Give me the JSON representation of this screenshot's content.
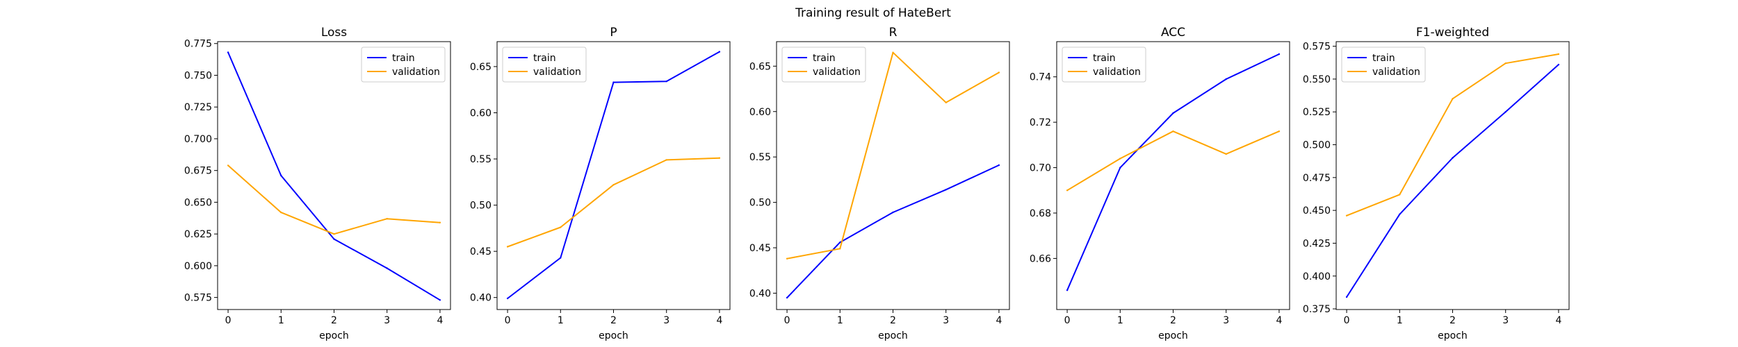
{
  "figure": {
    "suptitle": "Training result of HateBert"
  },
  "colors": {
    "train": "#0000ff",
    "validation": "#ffa500"
  },
  "chart_data": [
    {
      "type": "line",
      "title": "Loss",
      "xlabel": "epoch",
      "ylabel": "",
      "x": [
        0,
        1,
        2,
        3,
        4
      ],
      "xticks": [
        "0",
        "1",
        "2",
        "3",
        "4"
      ],
      "ylim": [
        0.5655,
        0.7765
      ],
      "yticks": [
        "0.575",
        "0.600",
        "0.625",
        "0.650",
        "0.675",
        "0.700",
        "0.725",
        "0.750",
        "0.775"
      ],
      "grid": false,
      "legend": "upper right",
      "series": [
        {
          "name": "train",
          "color": "#0000ff",
          "values": [
            0.768,
            0.671,
            0.621,
            0.598,
            0.573
          ]
        },
        {
          "name": "validation",
          "color": "#ffa500",
          "values": [
            0.679,
            0.642,
            0.625,
            0.637,
            0.634
          ]
        }
      ]
    },
    {
      "type": "line",
      "title": "P",
      "xlabel": "epoch",
      "ylabel": "",
      "x": [
        0,
        1,
        2,
        3,
        4
      ],
      "xticks": [
        "0",
        "1",
        "2",
        "3",
        "4"
      ],
      "ylim": [
        0.387,
        0.677
      ],
      "yticks": [
        "0.40",
        "0.45",
        "0.50",
        "0.55",
        "0.60",
        "0.65"
      ],
      "grid": false,
      "legend": "upper left",
      "series": [
        {
          "name": "train",
          "color": "#0000ff",
          "values": [
            0.399,
            0.443,
            0.633,
            0.634,
            0.666
          ]
        },
        {
          "name": "validation",
          "color": "#ffa500",
          "values": [
            0.455,
            0.476,
            0.522,
            0.549,
            0.551
          ]
        }
      ]
    },
    {
      "type": "line",
      "title": "R",
      "xlabel": "epoch",
      "ylabel": "",
      "x": [
        0,
        1,
        2,
        3,
        4
      ],
      "xticks": [
        "0",
        "1",
        "2",
        "3",
        "4"
      ],
      "ylim": [
        0.382,
        0.677
      ],
      "yticks": [
        "0.40",
        "0.45",
        "0.50",
        "0.55",
        "0.60",
        "0.65"
      ],
      "grid": false,
      "legend": "upper left",
      "series": [
        {
          "name": "train",
          "color": "#0000ff",
          "values": [
            0.395,
            0.456,
            0.489,
            0.514,
            0.541
          ]
        },
        {
          "name": "validation",
          "color": "#ffa500",
          "values": [
            0.438,
            0.449,
            0.665,
            0.61,
            0.643
          ]
        }
      ]
    },
    {
      "type": "line",
      "title": "ACC",
      "xlabel": "epoch",
      "ylabel": "",
      "x": [
        0,
        1,
        2,
        3,
        4
      ],
      "xticks": [
        "0",
        "1",
        "2",
        "3",
        "4"
      ],
      "ylim": [
        0.6375,
        0.7555
      ],
      "yticks": [
        "0.66",
        "0.68",
        "0.70",
        "0.72",
        "0.74"
      ],
      "grid": false,
      "legend": "upper left",
      "series": [
        {
          "name": "train",
          "color": "#0000ff",
          "values": [
            0.646,
            0.7,
            0.724,
            0.739,
            0.75
          ]
        },
        {
          "name": "validation",
          "color": "#ffa500",
          "values": [
            0.69,
            0.704,
            0.716,
            0.706,
            0.716
          ]
        }
      ]
    },
    {
      "type": "line",
      "title": "F1-weighted",
      "xlabel": "epoch",
      "ylabel": "",
      "x": [
        0,
        1,
        2,
        3,
        4
      ],
      "xticks": [
        "0",
        "1",
        "2",
        "3",
        "4"
      ],
      "ylim": [
        0.3745,
        0.5785
      ],
      "yticks": [
        "0.375",
        "0.400",
        "0.425",
        "0.450",
        "0.475",
        "0.500",
        "0.525",
        "0.550",
        "0.575"
      ],
      "grid": false,
      "legend": "upper left",
      "series": [
        {
          "name": "train",
          "color": "#0000ff",
          "values": [
            0.384,
            0.447,
            0.49,
            0.525,
            0.561
          ]
        },
        {
          "name": "validation",
          "color": "#ffa500",
          "values": [
            0.446,
            0.462,
            0.535,
            0.562,
            0.569
          ]
        }
      ]
    }
  ]
}
